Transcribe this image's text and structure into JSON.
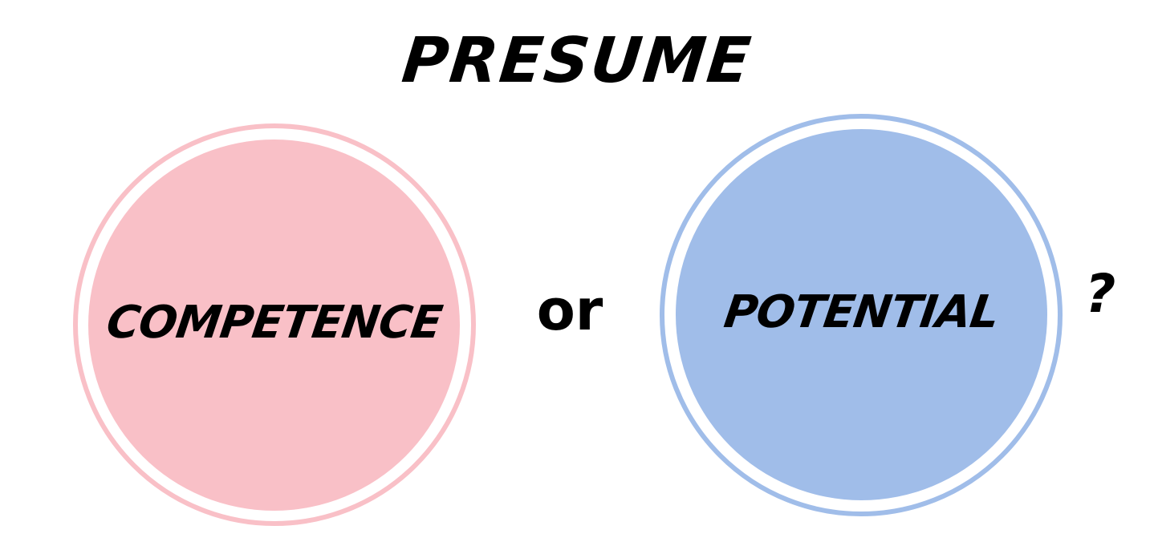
{
  "title": "PRESUME",
  "left_circle": {
    "label": "COMPETENCE",
    "color": "#f9c0c7"
  },
  "connector": "or",
  "right_circle": {
    "label": "POTENTIAL",
    "color": "#a0bde9"
  },
  "question_mark": "?"
}
